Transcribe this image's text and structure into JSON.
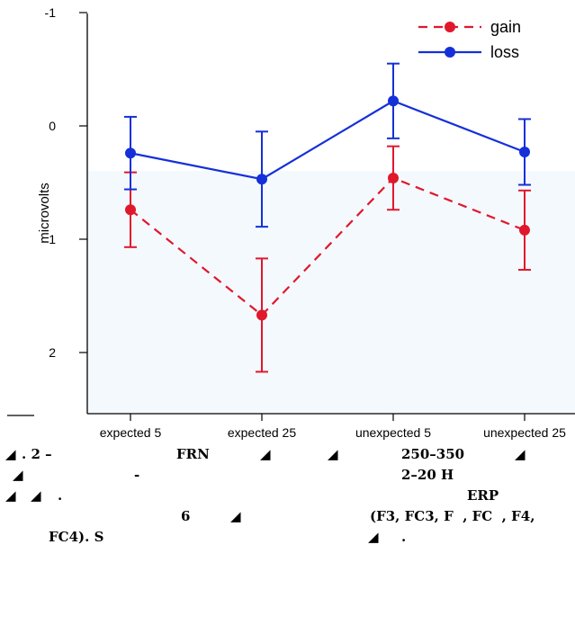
{
  "chart_data": {
    "type": "line",
    "categories": [
      "expected 5",
      "expected 25",
      "unexpected 5",
      "unexpected 25"
    ],
    "ylabel": "microvolts",
    "yticks": [
      "-1",
      "0",
      "1",
      "2"
    ],
    "ylim": [
      -1,
      2.6
    ],
    "y_inverted": true,
    "legend_position": "top-right",
    "series": [
      {
        "name": "gain",
        "color": "#e0182c",
        "line": "dashed",
        "values": [
          0.74,
          1.67,
          0.46,
          0.92
        ],
        "errors": [
          0.33,
          0.5,
          0.28,
          0.35
        ]
      },
      {
        "name": "loss",
        "color": "#1530d8",
        "line": "solid",
        "values": [
          0.24,
          0.47,
          -0.22,
          0.23
        ],
        "errors": [
          0.32,
          0.42,
          0.33,
          0.29
        ]
      }
    ]
  },
  "caption": {
    "lines": [
      [
        {
          "text": ". 2 –"
        },
        {
          "text": "FRN"
        },
        {
          "text": "250–350"
        }
      ],
      [
        {
          "text": "-"
        },
        {
          "text": "2–20 H"
        }
      ],
      [
        {
          "text": "."
        },
        {
          "text": "ERP"
        }
      ],
      [
        {
          "text": "6"
        },
        {
          "text": "(F3, FC3, F  , FC  , F4,"
        }
      ],
      [
        {
          "text": "FC4). S"
        },
        {
          "text": "."
        }
      ]
    ]
  }
}
